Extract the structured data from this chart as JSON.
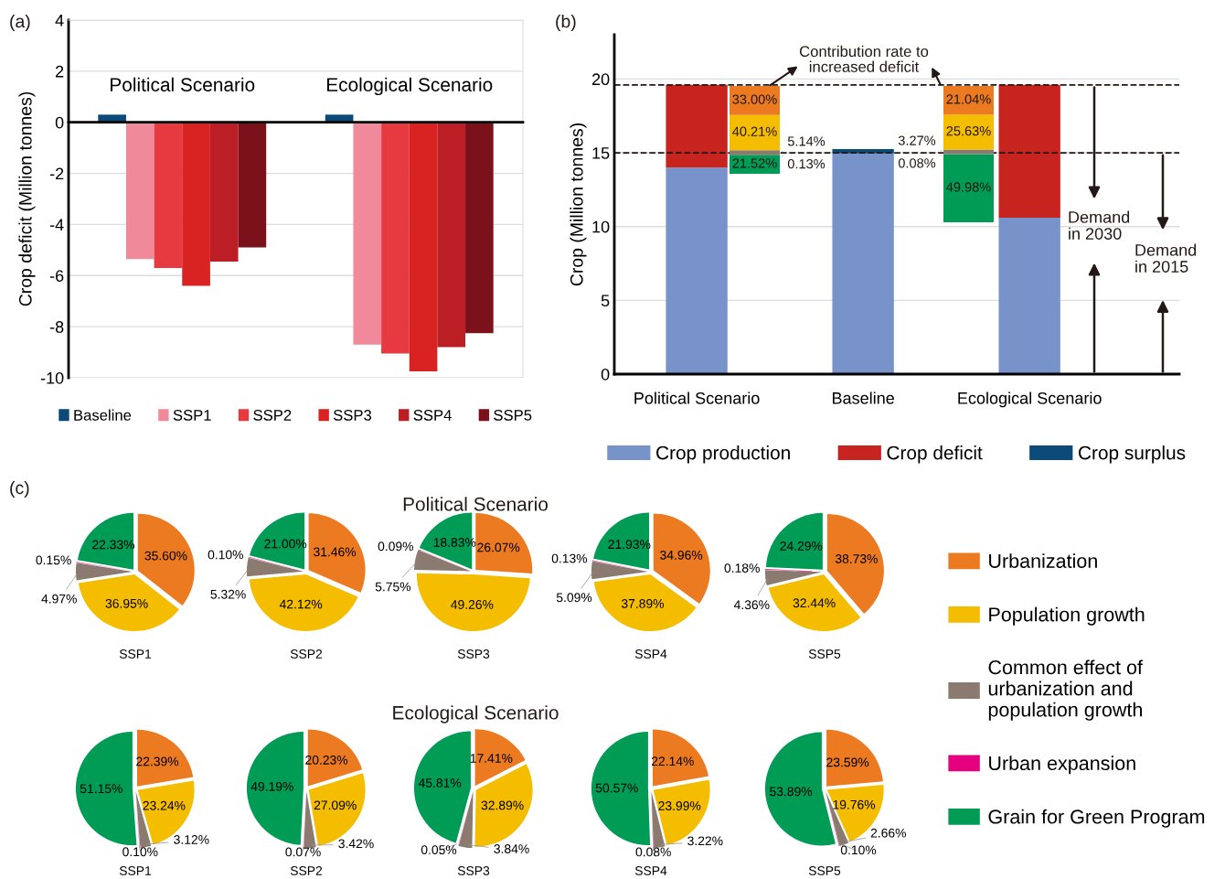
{
  "chart_data": [
    {
      "type": "bar",
      "ylabel": "Crop deficit (Million tonnes)",
      "categories": [
        "Political Scenario",
        "Ecological Scenario"
      ],
      "series": [
        {
          "name": "Baseline",
          "color": "#0c4a7a",
          "values": [
            0.3,
            0.3
          ]
        },
        {
          "name": "SSP1",
          "color": "#f08a9a",
          "values": [
            -5.35,
            -8.7
          ]
        },
        {
          "name": "SSP2",
          "color": "#e63a40",
          "values": [
            -5.7,
            -9.05
          ]
        },
        {
          "name": "SSP3",
          "color": "#d92323",
          "values": [
            -6.4,
            -9.75
          ]
        },
        {
          "name": "SSP4",
          "color": "#bb1e24",
          "values": [
            -5.45,
            -8.8
          ]
        },
        {
          "name": "SSP5",
          "color": "#7b121b",
          "values": [
            -4.9,
            -8.25
          ]
        }
      ],
      "ylim": [
        -10,
        4
      ],
      "yticks": [
        -10,
        -8,
        -6,
        -4,
        -2,
        0,
        2,
        4
      ],
      "grid": "y",
      "legend": "bottom",
      "annotations": [
        "(a)"
      ]
    },
    {
      "type": "bar",
      "stacked": true,
      "ylabel": "Crop (Million tonnes)",
      "categories": [
        "Political Scenario",
        "Baseline",
        "Ecological Scenario"
      ],
      "series": [
        {
          "name": "Crop production",
          "color": "#7893c9",
          "values": [
            14.0,
            14.95,
            10.6
          ]
        },
        {
          "name": "Crop deficit",
          "color": "#c8241f",
          "values": [
            5.6,
            null,
            9.0
          ]
        },
        {
          "name": "Crop surplus",
          "color": "#0c4a7a",
          "values": [
            null,
            0.3,
            null
          ]
        }
      ],
      "ylim": [
        0,
        23
      ],
      "yticks": [
        0,
        5,
        10,
        15,
        20
      ],
      "grid": "y",
      "legend": "bottom",
      "ref_lines": [
        {
          "axis": "y",
          "value": 19.6,
          "color": "#231815",
          "line_style": "dashed"
        },
        {
          "axis": "y",
          "value": 15.0,
          "color": "#231815",
          "line_style": "dashed"
        }
      ],
      "annotations": [
        "(b)",
        "Contribution rate to\nincreased deficit",
        "Demand\nin 2030",
        "Demand\nin 2015"
      ]
    },
    {
      "type": "bar",
      "stacked": true,
      "categories": [
        null
      ],
      "tick_labels": false,
      "series": [
        {
          "color": "#009b55",
          "values": [
            21.52
          ],
          "value_labels": [
            "21.52%"
          ]
        },
        {
          "color": "#e4007f",
          "values": [
            0.13
          ],
          "value_labels": [
            "0.13%"
          ]
        },
        {
          "color": "#8a7a70",
          "values": [
            5.14
          ],
          "value_labels": [
            "5.14%"
          ]
        },
        {
          "color": "#f5bd00",
          "values": [
            40.21
          ],
          "value_labels": [
            "40.21%"
          ]
        },
        {
          "color": "#ec7a21",
          "values": [
            33.0
          ],
          "value_labels": [
            "33.00%"
          ]
        }
      ]
    },
    {
      "type": "bar",
      "stacked": true,
      "categories": [
        null
      ],
      "tick_labels": false,
      "series": [
        {
          "color": "#009b55",
          "values": [
            49.98
          ],
          "value_labels": [
            "49.98%"
          ]
        },
        {
          "color": "#e4007f",
          "values": [
            0.08
          ],
          "value_labels": [
            "0.08%"
          ]
        },
        {
          "color": "#8a7a70",
          "values": [
            3.27
          ],
          "value_labels": [
            "3.27%"
          ]
        },
        {
          "color": "#f5bd00",
          "values": [
            25.63
          ],
          "value_labels": [
            "25.63%"
          ]
        },
        {
          "color": "#ec7a21",
          "values": [
            21.04
          ],
          "value_labels": [
            "21.04%"
          ]
        }
      ]
    },
    {
      "type": "pie",
      "xlabel": "SSP1",
      "legend": "right",
      "annotations": [
        "(c)"
      ],
      "categories": [
        "Urbanization",
        "Population growth",
        "Common effect of\nurbanization and\npopulation growth",
        "Urban expansion",
        "Grain for Green Program"
      ],
      "values": [
        35.6,
        36.95,
        4.97,
        0.15,
        22.33
      ],
      "colors": [
        "#ec7a21",
        "#f5bd00",
        "#8a7a70",
        "#e4007f",
        "#009b55"
      ],
      "value_labels": [
        "35.60%",
        "36.95%",
        "4.97%",
        "0.15%",
        "22.33%"
      ]
    },
    {
      "type": "pie",
      "xlabel": "SSP2",
      "values": [
        31.46,
        42.12,
        5.32,
        0.1,
        21.0
      ],
      "colors": [
        "#ec7a21",
        "#f5bd00",
        "#8a7a70",
        "#e4007f",
        "#009b55"
      ],
      "value_labels": [
        "31.46%",
        "42.12%",
        "5.32%",
        "0.10%",
        "21.00%"
      ]
    },
    {
      "type": "pie",
      "title": "Political Scenario",
      "xlabel": "SSP3",
      "values": [
        26.07,
        49.26,
        5.75,
        0.09,
        18.83
      ],
      "colors": [
        "#ec7a21",
        "#f5bd00",
        "#8a7a70",
        "#e4007f",
        "#009b55"
      ],
      "value_labels": [
        "26.07%",
        "49.26%",
        "5.75%",
        "0.09%",
        "18.83%"
      ]
    },
    {
      "type": "pie",
      "xlabel": "SSP4",
      "values": [
        34.96,
        37.89,
        5.09,
        0.13,
        21.93
      ],
      "colors": [
        "#ec7a21",
        "#f5bd00",
        "#8a7a70",
        "#e4007f",
        "#009b55"
      ],
      "value_labels": [
        "34.96%",
        "37.89%",
        "5.09%",
        "0.13%",
        "21.93%"
      ]
    },
    {
      "type": "pie",
      "xlabel": "SSP5",
      "values": [
        38.73,
        32.44,
        4.36,
        0.18,
        24.29
      ],
      "colors": [
        "#ec7a21",
        "#f5bd00",
        "#8a7a70",
        "#e4007f",
        "#009b55"
      ],
      "value_labels": [
        "38.73%",
        "32.44%",
        "4.36%",
        "0.18%",
        "24.29%"
      ]
    },
    {
      "type": "pie",
      "xlabel": "SSP1",
      "values": [
        22.39,
        23.24,
        3.12,
        0.1,
        51.15
      ],
      "colors": [
        "#ec7a21",
        "#f5bd00",
        "#8a7a70",
        "#e4007f",
        "#009b55"
      ],
      "value_labels": [
        "22.39%",
        "23.24%",
        "3.12%",
        "0.10%",
        "51.15%"
      ]
    },
    {
      "type": "pie",
      "xlabel": "SSP2",
      "values": [
        20.23,
        27.09,
        3.42,
        0.07,
        49.19
      ],
      "colors": [
        "#ec7a21",
        "#f5bd00",
        "#8a7a70",
        "#e4007f",
        "#009b55"
      ],
      "value_labels": [
        "20.23%",
        "27.09%",
        "3.42%",
        "0.07%",
        "49.19%"
      ]
    },
    {
      "type": "pie",
      "title": "Ecological Scenario",
      "xlabel": "SSP3",
      "values": [
        17.41,
        32.89,
        3.84,
        0.05,
        45.81
      ],
      "colors": [
        "#ec7a21",
        "#f5bd00",
        "#8a7a70",
        "#e4007f",
        "#009b55"
      ],
      "value_labels": [
        "17.41%",
        "32.89%",
        "3.84%",
        "0.05%",
        "45.81%"
      ]
    },
    {
      "type": "pie",
      "xlabel": "SSP4",
      "values": [
        22.14,
        23.99,
        3.22,
        0.08,
        50.57
      ],
      "colors": [
        "#ec7a21",
        "#f5bd00",
        "#8a7a70",
        "#e4007f",
        "#009b55"
      ],
      "value_labels": [
        "22.14%",
        "23.99%",
        "3.22%",
        "0.08%",
        "50.57%"
      ]
    },
    {
      "type": "pie",
      "xlabel": "SSP5",
      "values": [
        23.59,
        19.76,
        2.66,
        0.1,
        53.89
      ],
      "colors": [
        "#ec7a21",
        "#f5bd00",
        "#8a7a70",
        "#e4007f",
        "#009b55"
      ],
      "value_labels": [
        "23.59%",
        "19.76%",
        "2.66%",
        "0.10%",
        "53.89%"
      ]
    }
  ]
}
